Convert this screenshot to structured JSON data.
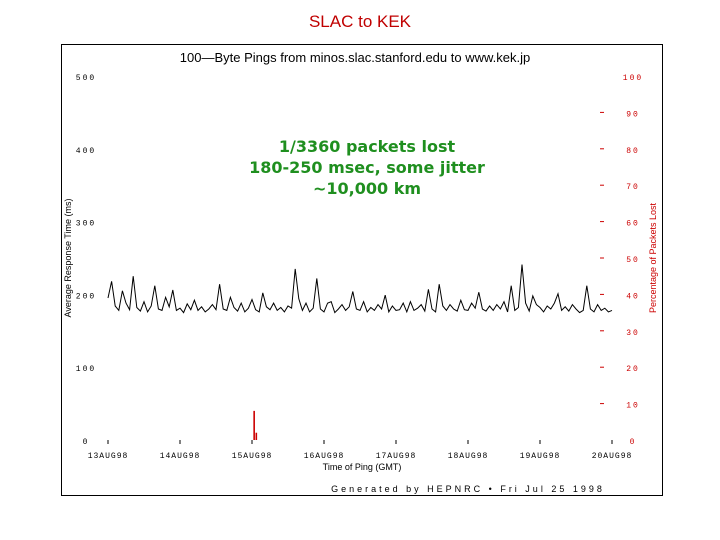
{
  "slide": {
    "title": "SLAC to KEK"
  },
  "annotation": {
    "lines": [
      "1/3360 packets lost",
      "180-250 msec, some jitter",
      "~10,000 km"
    ]
  },
  "chart_data": {
    "type": "line",
    "title": "100—Byte  Pings  from  minos.slac.stanford.edu  to  www.kek.jp",
    "xlabel": "Time of Ping (GMT)",
    "ylabel": "Average Response Time (ms)",
    "y2label": "Percentage of Packets Lost",
    "footer": "Generated by HEPNRC  •  Fri Jul 25 1998",
    "ylim": [
      0,
      500
    ],
    "y2lim": [
      0,
      100
    ],
    "yticks": [
      0,
      100,
      200,
      300,
      400,
      500
    ],
    "y2ticks": [
      0,
      10,
      20,
      30,
      40,
      50,
      60,
      70,
      80,
      90,
      100
    ],
    "xticks": [
      "13AUG98",
      "14AUG98",
      "15AUG98",
      "16AUG98",
      "17AUG98",
      "18AUG98",
      "19AUG98",
      "20AUG98"
    ],
    "grid": false,
    "colors": {
      "response": "#000000",
      "loss": "#cc0000",
      "axis_right": "#cc0000"
    },
    "series": [
      {
        "axis": "left",
        "x": [
          0.0,
          0.05,
          0.1,
          0.15,
          0.2,
          0.25,
          0.3,
          0.35,
          0.4,
          0.45,
          0.5,
          0.55,
          0.6,
          0.65,
          0.7,
          0.75,
          0.8,
          0.85,
          0.9,
          0.95,
          1.0,
          1.05,
          1.1,
          1.15,
          1.2,
          1.25,
          1.3,
          1.35,
          1.4,
          1.45,
          1.5,
          1.55,
          1.6,
          1.65,
          1.7,
          1.75,
          1.8,
          1.85,
          1.9,
          1.95,
          2.0,
          2.05,
          2.1,
          2.15,
          2.2,
          2.25,
          2.3,
          2.35,
          2.4,
          2.45,
          2.5,
          2.55,
          2.6,
          2.65,
          2.7,
          2.75,
          2.8,
          2.85,
          2.9,
          2.95,
          3.0,
          3.05,
          3.1,
          3.15,
          3.2,
          3.25,
          3.3,
          3.35,
          3.4,
          3.45,
          3.5,
          3.55,
          3.6,
          3.65,
          3.7,
          3.75,
          3.8,
          3.85,
          3.9,
          3.95,
          4.0,
          4.05,
          4.1,
          4.15,
          4.2,
          4.25,
          4.3,
          4.35,
          4.4,
          4.45,
          4.5,
          4.55,
          4.6,
          4.65,
          4.7,
          4.75,
          4.8,
          4.85,
          4.9,
          4.95,
          5.0,
          5.05,
          5.1,
          5.15,
          5.2,
          5.25,
          5.3,
          5.35,
          5.4,
          5.45,
          5.5,
          5.55,
          5.6,
          5.65,
          5.7,
          5.75,
          5.8,
          5.85,
          5.9,
          5.95,
          6.0,
          6.05,
          6.1,
          6.15,
          6.2,
          6.25,
          6.3,
          6.35,
          6.4,
          6.45,
          6.5,
          6.55,
          6.6,
          6.65,
          6.7,
          6.75,
          6.8,
          6.85,
          6.9,
          6.95,
          7.0
        ],
        "y": [
          195,
          218,
          184,
          178,
          205,
          188,
          179,
          225,
          182,
          177,
          190,
          176,
          184,
          212,
          180,
          178,
          196,
          183,
          206,
          178,
          181,
          175,
          187,
          179,
          192,
          178,
          183,
          176,
          180,
          186,
          179,
          214,
          180,
          178,
          196,
          182,
          177,
          188,
          176,
          181,
          193,
          179,
          176,
          202,
          183,
          179,
          188,
          178,
          182,
          176,
          184,
          181,
          235,
          194,
          178,
          188,
          176,
          181,
          222,
          180,
          176,
          188,
          190,
          175,
          180,
          186,
          178,
          183,
          204,
          180,
          178,
          190,
          176,
          182,
          178,
          186,
          180,
          199,
          176,
          184,
          178,
          179,
          188,
          176,
          190,
          178,
          181,
          186,
          177,
          207,
          180,
          176,
          214,
          184,
          178,
          186,
          180,
          177,
          192,
          179,
          178,
          188,
          181,
          203,
          180,
          177,
          184,
          178,
          186,
          180,
          190,
          176,
          212,
          178,
          182,
          241,
          188,
          177,
          198,
          186,
          182,
          176,
          184,
          180,
          188,
          201,
          178,
          183,
          177,
          186,
          180,
          175,
          178,
          212,
          180,
          176,
          186,
          178,
          181,
          176,
          178
        ]
      },
      {
        "axis": "right",
        "name": "",
        "x": [
          2.03,
          2.06
        ],
        "y": [
          8,
          2
        ]
      }
    ]
  }
}
